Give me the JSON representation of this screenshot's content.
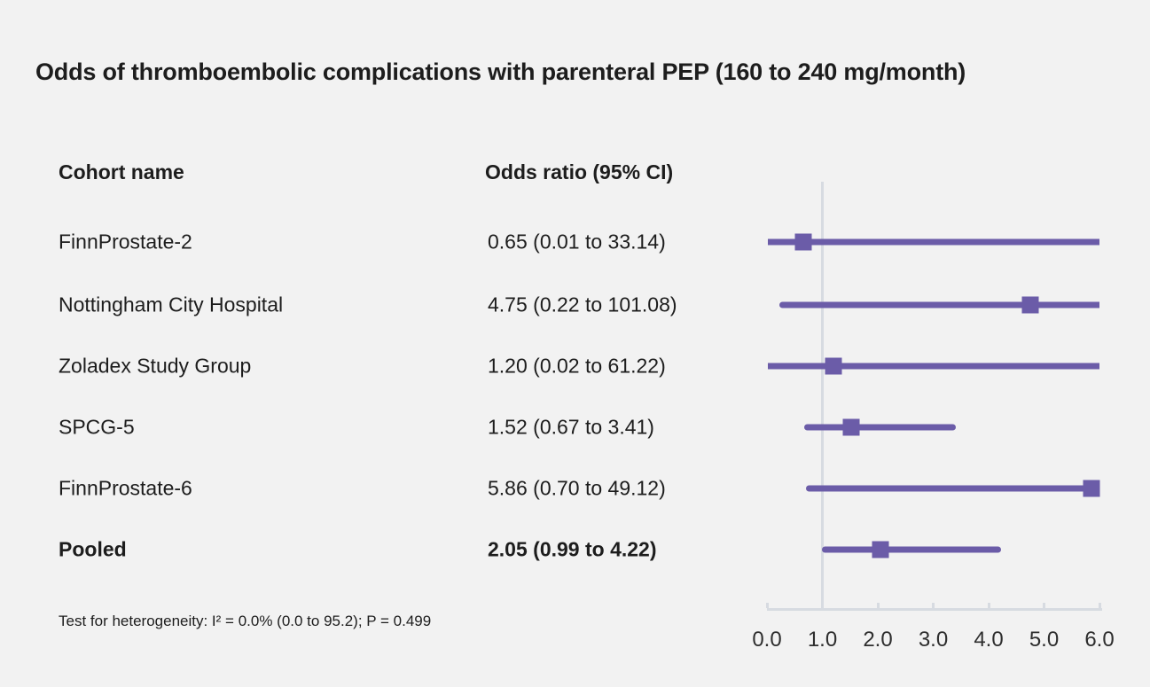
{
  "figure": {
    "title": "Odds of thromboembolic complications with parenteral PEP (160 to 240 mg/month)",
    "footnote": "Test for heterogeneity: I² = 0.0% (0.0 to 95.2); P = 0.499"
  },
  "table": {
    "col1_header": "Cohort name",
    "col2_header": "Odds ratio (95% CI)"
  },
  "chart_data": {
    "type": "forest",
    "title": "Odds of thromboembolic complications with parenteral PEP (160 to 240 mg/month)",
    "xlabel": "Odds ratio (95% CI)",
    "axis": {
      "min": 0.0,
      "max": 6.0,
      "ticks": [
        0.0,
        1.0,
        2.0,
        3.0,
        4.0,
        5.0,
        6.0
      ],
      "tick_labels": [
        "0.0",
        "1.0",
        "2.0",
        "3.0",
        "4.0",
        "5.0",
        "6.0"
      ],
      "reference_line": 1.0,
      "grid": false
    },
    "rows": [
      {
        "cohort": "FinnProstate-2",
        "or": 0.65,
        "ci_low": 0.01,
        "ci_high": 33.14,
        "or_label": "0.65 (0.01 to 33.14)",
        "bold": false
      },
      {
        "cohort": "Nottingham City Hospital",
        "or": 4.75,
        "ci_low": 0.22,
        "ci_high": 101.08,
        "or_label": "4.75 (0.22 to 101.08)",
        "bold": false
      },
      {
        "cohort": "Zoladex Study Group",
        "or": 1.2,
        "ci_low": 0.02,
        "ci_high": 61.22,
        "or_label": "1.20 (0.02 to 61.22)",
        "bold": false
      },
      {
        "cohort": "SPCG-5",
        "or": 1.52,
        "ci_low": 0.67,
        "ci_high": 3.41,
        "or_label": "1.52 (0.67 to 3.41)",
        "bold": false
      },
      {
        "cohort": "FinnProstate-6",
        "or": 5.86,
        "ci_low": 0.7,
        "ci_high": 49.12,
        "or_label": "5.86 (0.70 to 49.12)",
        "bold": false
      },
      {
        "cohort": "Pooled",
        "or": 2.05,
        "ci_low": 0.99,
        "ci_high": 4.22,
        "or_label": "2.05 (0.99 to 4.22)",
        "bold": true
      }
    ],
    "heterogeneity": "Test for heterogeneity: I² = 0.0% (0.0 to 95.2); P = 0.499",
    "colors": {
      "marker": "#6b5ca8",
      "ci_line": "#6b5ca8",
      "axis": "#d7dbe1",
      "reference_line": "#d7dbe1",
      "background": "#f2f2f2",
      "text": "#1d1d1d"
    },
    "legend_position": "none"
  }
}
